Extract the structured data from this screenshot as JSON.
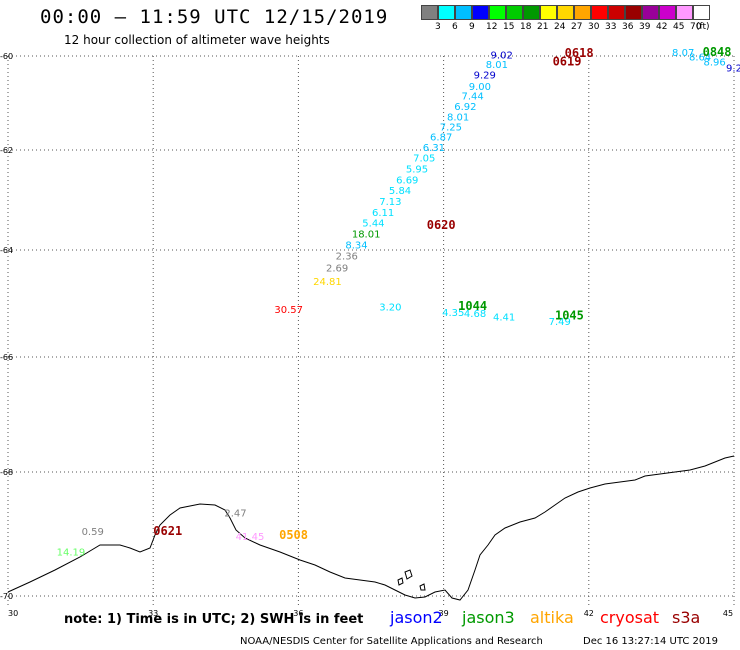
{
  "header": {
    "title": "00:00 – 11:59 UTC 12/15/2019",
    "subtitle": "12 hour collection of altimeter wave heights"
  },
  "colorbar": {
    "unit": "(ft)",
    "boxes": [
      "#808080",
      "#00ffff",
      "#00bfff",
      "#0000ff",
      "#00ff00",
      "#00cc00",
      "#009900",
      "#ffff00",
      "#ffd700",
      "#ffa500",
      "#ff0000",
      "#cc0000",
      "#990000",
      "#990099",
      "#cc00cc",
      "#ff99ff",
      "#ffffff"
    ],
    "labels": [
      "3",
      "6",
      "9",
      "12",
      "15",
      "18",
      "21",
      "24",
      "27",
      "30",
      "33",
      "36",
      "39",
      "42",
      "45",
      "70"
    ]
  },
  "map": {
    "lon_ticks": [
      "30",
      "33",
      "36",
      "39",
      "42",
      "45"
    ],
    "lat_ticks": [
      "-60",
      "-62",
      "-64",
      "-66",
      "-68",
      "-70"
    ],
    "lon_range": [
      30,
      45
    ],
    "lat_range": [
      -60,
      -70
    ]
  },
  "observations": [
    {
      "text": "9.02",
      "lon": 40.2,
      "lat": -60.05,
      "color": "#0000cc"
    },
    {
      "text": "8.01",
      "lon": 40.1,
      "lat": -60.25,
      "color": "#00bfff"
    },
    {
      "text": "9.29",
      "lon": 39.85,
      "lat": -60.48,
      "color": "#0000cc"
    },
    {
      "text": "9.00",
      "lon": 39.75,
      "lat": -60.72,
      "color": "#00bfff"
    },
    {
      "text": "7.44",
      "lon": 39.6,
      "lat": -60.93,
      "color": "#00bfff"
    },
    {
      "text": "6.92",
      "lon": 39.45,
      "lat": -61.15,
      "color": "#00bfff"
    },
    {
      "text": "8.01",
      "lon": 39.3,
      "lat": -61.37,
      "color": "#00bfff"
    },
    {
      "text": "7.25",
      "lon": 39.15,
      "lat": -61.58,
      "color": "#00bfff"
    },
    {
      "text": "6.87",
      "lon": 38.95,
      "lat": -61.8,
      "color": "#00bfff"
    },
    {
      "text": "6.31",
      "lon": 38.8,
      "lat": -62.02,
      "color": "#00bfff"
    },
    {
      "text": "7.05",
      "lon": 38.6,
      "lat": -62.23,
      "color": "#00e0ff"
    },
    {
      "text": "5.95",
      "lon": 38.45,
      "lat": -62.45,
      "color": "#00e0ff"
    },
    {
      "text": "6.69",
      "lon": 38.25,
      "lat": -62.67,
      "color": "#00e0ff"
    },
    {
      "text": "5.84",
      "lon": 38.1,
      "lat": -62.88,
      "color": "#00e0ff"
    },
    {
      "text": "7.13",
      "lon": 37.9,
      "lat": -63.1,
      "color": "#00e0ff"
    },
    {
      "text": "6.11",
      "lon": 37.75,
      "lat": -63.32,
      "color": "#00e0ff"
    },
    {
      "text": "5.44",
      "lon": 37.55,
      "lat": -63.53,
      "color": "#00e0ff"
    },
    {
      "text": "18.01",
      "lon": 37.4,
      "lat": -63.75,
      "color": "#009900"
    },
    {
      "text": "8.34",
      "lon": 37.2,
      "lat": -63.97,
      "color": "#00bfff"
    },
    {
      "text": "2.36",
      "lon": 37.0,
      "lat": -64.18,
      "color": "#808080"
    },
    {
      "text": "2.69",
      "lon": 36.8,
      "lat": -64.4,
      "color": "#808080"
    },
    {
      "text": "24.81",
      "lon": 36.6,
      "lat": -64.65,
      "color": "#ffd700"
    },
    {
      "text": "30.57",
      "lon": 35.8,
      "lat": -65.18,
      "color": "#ff0000"
    },
    {
      "text": "3.20",
      "lon": 37.9,
      "lat": -65.13,
      "color": "#00e0ff"
    },
    {
      "text": "4.35",
      "lon": 39.2,
      "lat": -65.23,
      "color": "#00e0ff"
    },
    {
      "text": "4.68",
      "lon": 39.65,
      "lat": -65.25,
      "color": "#00e0ff"
    },
    {
      "text": "4.41",
      "lon": 40.25,
      "lat": -65.32,
      "color": "#00e0ff"
    },
    {
      "text": "7.49",
      "lon": 41.4,
      "lat": -65.4,
      "color": "#00e0ff"
    },
    {
      "text": "8.07",
      "lon": 43.95,
      "lat": -59.98,
      "color": "#00bfff"
    },
    {
      "text": "8.64",
      "lon": 44.3,
      "lat": -60.1,
      "color": "#00bfff"
    },
    {
      "text": "8.96",
      "lon": 44.6,
      "lat": -60.2,
      "color": "#00bfff"
    },
    {
      "text": "9.2",
      "lon": 45.0,
      "lat": -60.33,
      "color": "#0000cc"
    },
    {
      "text": "0.59",
      "lon": 31.75,
      "lat": -69.02,
      "color": "#808080"
    },
    {
      "text": "14.19",
      "lon": 31.3,
      "lat": -69.35,
      "color": "#66ff66"
    },
    {
      "text": "2.47",
      "lon": 34.7,
      "lat": -68.72,
      "color": "#808080"
    },
    {
      "text": "41.45",
      "lon": 35.0,
      "lat": -69.1,
      "color": "#ff99ff"
    }
  ],
  "pass_times": [
    {
      "text": "0618",
      "lon": 41.8,
      "lat": -60.02,
      "color": "#990000"
    },
    {
      "text": "0619",
      "lon": 41.55,
      "lat": -60.2,
      "color": "#990000"
    },
    {
      "text": "0620",
      "lon": 38.95,
      "lat": -63.58,
      "color": "#990000"
    },
    {
      "text": "1044",
      "lon": 39.6,
      "lat": -65.12,
      "color": "#009900"
    },
    {
      "text": "1045",
      "lon": 41.6,
      "lat": -65.3,
      "color": "#009900"
    },
    {
      "text": "0848",
      "lon": 44.65,
      "lat": -59.98,
      "color": "#009900"
    },
    {
      "text": "0621",
      "lon": 33.3,
      "lat": -69.02,
      "color": "#990000"
    },
    {
      "text": "0508",
      "lon": 35.9,
      "lat": -69.08,
      "color": "#ffa500"
    }
  ],
  "note": "note: 1) Time is in UTC; 2) SWH is in feet",
  "legend": [
    {
      "label": "jason2",
      "color": "#0000ff"
    },
    {
      "label": "jason3",
      "color": "#009900"
    },
    {
      "label": "altika",
      "color": "#ffa500"
    },
    {
      "label": "cryosat",
      "color": "#ff0000"
    },
    {
      "label": "s3a",
      "color": "#990000"
    }
  ],
  "footer": {
    "source": "NOAA/NESDIS Center for Satellite Applications and Research",
    "timestamp": "Dec 16 13:27:14 UTC 2019"
  }
}
